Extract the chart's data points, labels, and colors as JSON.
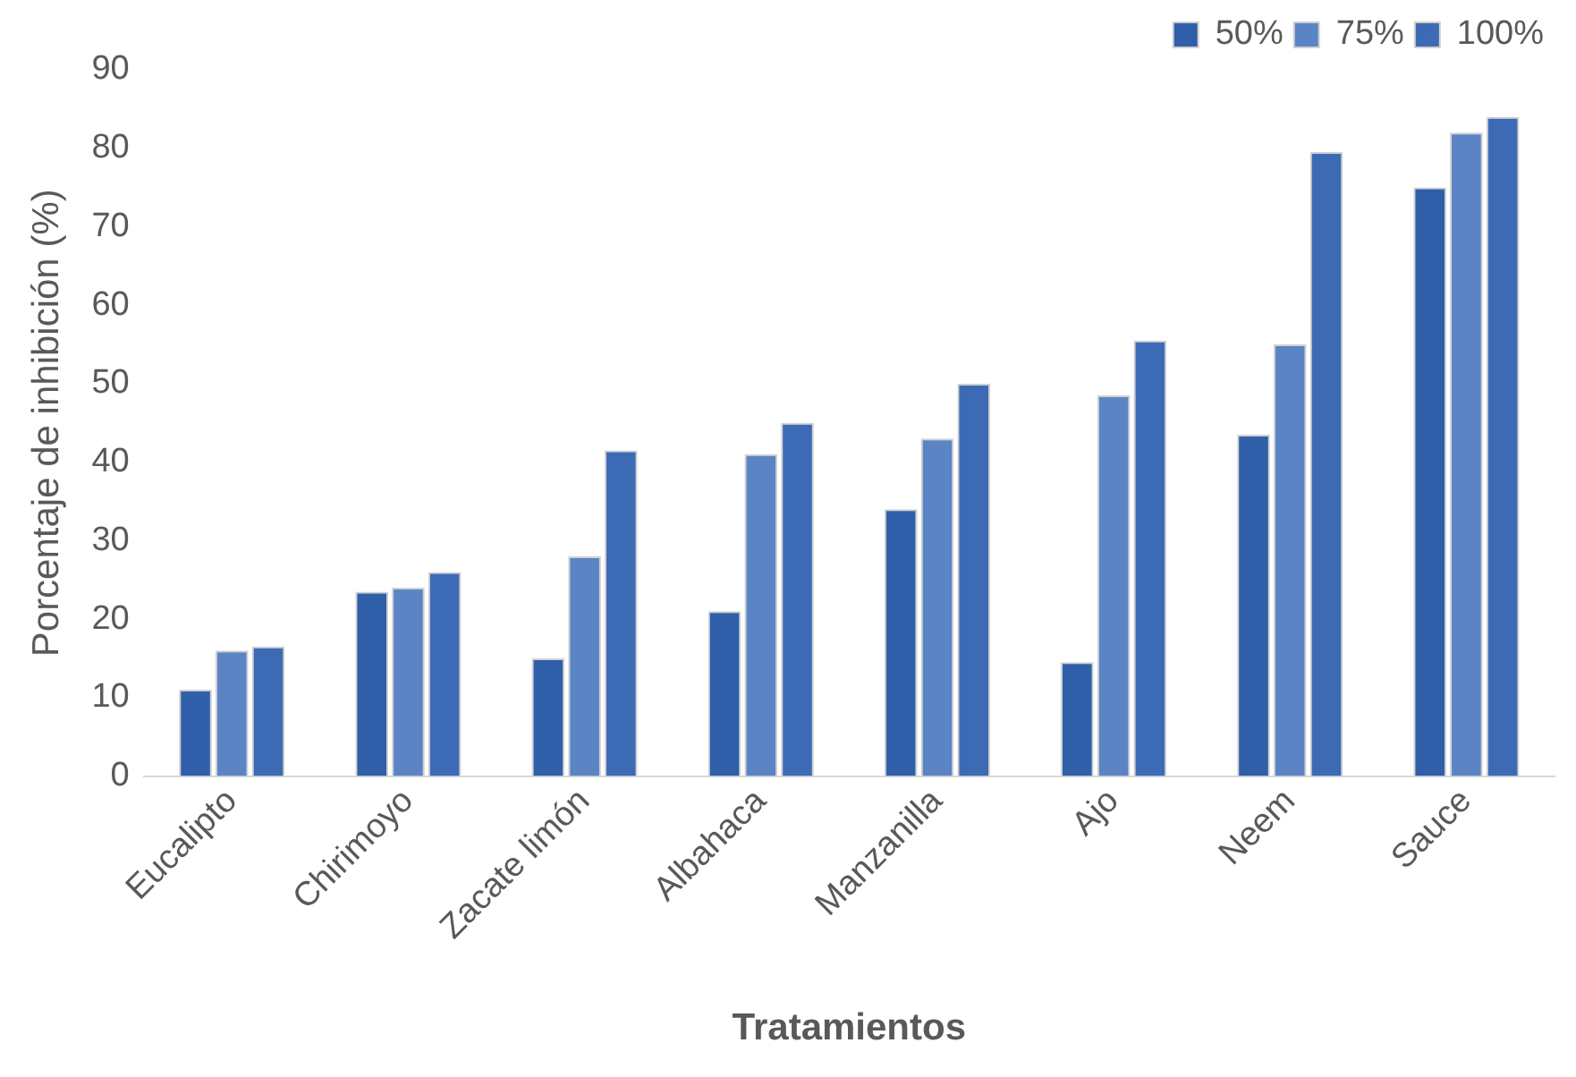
{
  "chart_data": {
    "type": "bar",
    "xlabel": "Tratamientos",
    "ylabel": "Porcentaje de inhibición (%)",
    "categories": [
      "Eucalipto",
      "Chirimoyo",
      "Zacate limón",
      "Albahaca",
      "Manzanilla",
      "Ajo",
      "Neem",
      "Sauce"
    ],
    "series": [
      {
        "name": "50%",
        "color": "#2f5fa8",
        "values": [
          11,
          23.5,
          15,
          21,
          34,
          14.5,
          43.5,
          75
        ]
      },
      {
        "name": "75%",
        "color": "#5b84c4",
        "values": [
          16,
          24,
          28,
          41,
          43,
          48.5,
          55,
          82
        ]
      },
      {
        "name": "100%",
        "color": "#3d6ab4",
        "values": [
          16.5,
          26,
          41.5,
          45,
          50,
          55.5,
          79.5,
          84
        ]
      }
    ],
    "ylim": [
      0,
      90
    ],
    "yticks": [
      0,
      10,
      20,
      30,
      40,
      50,
      60,
      70,
      80,
      90
    ],
    "grid": false,
    "legend": "top right"
  }
}
